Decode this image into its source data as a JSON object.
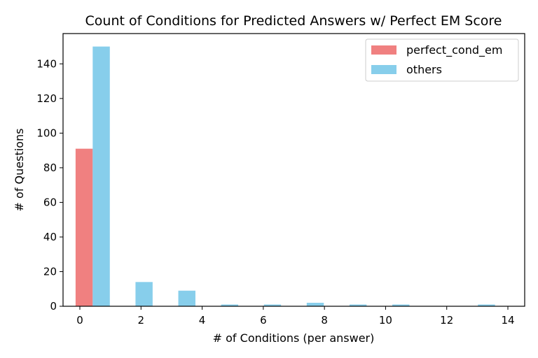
{
  "chart_data": {
    "type": "bar",
    "title": "Count of Conditions for Predicted Answers w/ Perfect EM Score",
    "xlabel": "# of Conditions (per answer)",
    "ylabel": "# of Questions",
    "xlim": [
      -0.55,
      14.55
    ],
    "ylim": [
      0,
      157.5
    ],
    "xticks": [
      0,
      2,
      4,
      6,
      8,
      10,
      12,
      14
    ],
    "yticks": [
      0,
      20,
      40,
      60,
      80,
      100,
      120,
      140
    ],
    "grid": false,
    "legend_position": "top-right",
    "bar_width": 0.56,
    "series": [
      {
        "name": "perfect_cond_em",
        "color": "#f08080",
        "x": [
          0.14
        ],
        "values": [
          91
        ]
      },
      {
        "name": "others",
        "color": "#87ceeb",
        "x": [
          0.7,
          2.1,
          3.5,
          4.9,
          6.3,
          7.7,
          9.1,
          10.5,
          13.3
        ],
        "values": [
          150,
          14,
          9,
          1,
          1,
          2,
          1,
          1,
          1
        ]
      }
    ]
  }
}
